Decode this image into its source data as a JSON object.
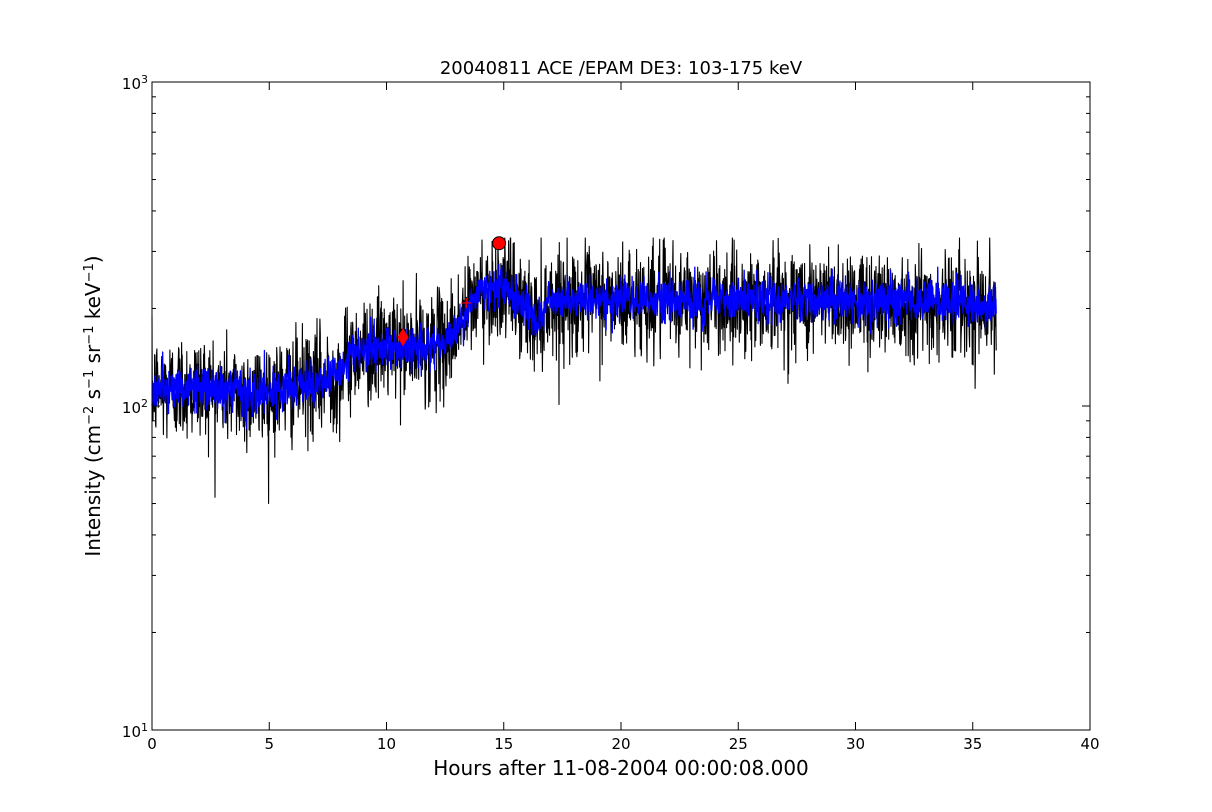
{
  "colors": {
    "raw_series": "#000000",
    "smoothed_series": "#0000ff",
    "markers": "#ff0000",
    "axes": "#000000",
    "background": "#ffffff"
  },
  "chart_data": {
    "type": "line",
    "title": "20040811 ACE /EPAM DE3: 103-175 keV",
    "xlabel": "Hours after 11-08-2004 00:00:08.000",
    "ylabel": {
      "prefix": "Intensity (cm",
      "sup1": "−2",
      "mid1": " s",
      "sup2": "−1",
      "mid2": " sr",
      "sup3": "−1",
      "mid3": " keV",
      "sup4": "−1",
      "suffix": ")"
    },
    "xlim": [
      0,
      40
    ],
    "ylim": [
      10,
      1000
    ],
    "yscale": "log",
    "grid": false,
    "legend": "none",
    "x_ticks": [
      {
        "value": 0,
        "label": "0"
      },
      {
        "value": 5,
        "label": "5"
      },
      {
        "value": 10,
        "label": "10"
      },
      {
        "value": 15,
        "label": "15"
      },
      {
        "value": 20,
        "label": "20"
      },
      {
        "value": 25,
        "label": "25"
      },
      {
        "value": 30,
        "label": "30"
      },
      {
        "value": 35,
        "label": "35"
      },
      {
        "value": 40,
        "label": "40"
      }
    ],
    "y_ticks": [
      {
        "value": 10,
        "base": "10",
        "exp": "1"
      },
      {
        "value": 100,
        "base": "10",
        "exp": "2"
      },
      {
        "value": 1000,
        "base": "10",
        "exp": "3"
      }
    ],
    "series": [
      {
        "style": "raw",
        "x_range": [
          0,
          36
        ],
        "profile": [
          {
            "x": 0,
            "y": 112
          },
          {
            "x": 2,
            "y": 115
          },
          {
            "x": 4,
            "y": 108
          },
          {
            "x": 5,
            "y": 110
          },
          {
            "x": 7,
            "y": 118
          },
          {
            "x": 8,
            "y": 125
          },
          {
            "x": 8.5,
            "y": 145
          },
          {
            "x": 10,
            "y": 152
          },
          {
            "x": 11,
            "y": 150
          },
          {
            "x": 12.5,
            "y": 155
          },
          {
            "x": 13.5,
            "y": 200
          },
          {
            "x": 14,
            "y": 225
          },
          {
            "x": 15,
            "y": 235
          },
          {
            "x": 15.5,
            "y": 215
          },
          {
            "x": 16.3,
            "y": 185
          },
          {
            "x": 17,
            "y": 210
          },
          {
            "x": 20,
            "y": 212
          },
          {
            "x": 25,
            "y": 213
          },
          {
            "x": 30,
            "y": 212
          },
          {
            "x": 36,
            "y": 208
          }
        ],
        "log_spread": 0.19,
        "min": 50,
        "max": 330
      },
      {
        "style": "smoothed",
        "x_range": [
          0,
          36
        ],
        "profile": [
          {
            "x": 0,
            "y": 112
          },
          {
            "x": 2,
            "y": 115
          },
          {
            "x": 4,
            "y": 108
          },
          {
            "x": 5,
            "y": 110
          },
          {
            "x": 7,
            "y": 118
          },
          {
            "x": 8,
            "y": 125
          },
          {
            "x": 8.5,
            "y": 145
          },
          {
            "x": 10,
            "y": 152
          },
          {
            "x": 11,
            "y": 150
          },
          {
            "x": 12.5,
            "y": 155
          },
          {
            "x": 13.5,
            "y": 200
          },
          {
            "x": 14,
            "y": 225
          },
          {
            "x": 15,
            "y": 235
          },
          {
            "x": 15.5,
            "y": 215
          },
          {
            "x": 16.3,
            "y": 185
          },
          {
            "x": 17,
            "y": 210
          },
          {
            "x": 20,
            "y": 212
          },
          {
            "x": 25,
            "y": 213
          },
          {
            "x": 30,
            "y": 212
          },
          {
            "x": 36,
            "y": 208
          }
        ],
        "log_spread": 0.075
      }
    ],
    "markers": [
      {
        "shape": "circle",
        "x": 14.8,
        "y": 318
      },
      {
        "shape": "diamond",
        "x": 10.7,
        "y": 163
      },
      {
        "shape": "plus",
        "x": 13.4,
        "y": 208
      }
    ]
  }
}
